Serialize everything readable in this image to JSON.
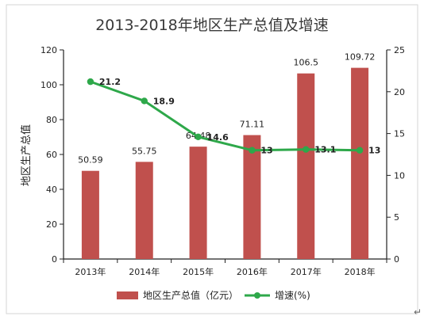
{
  "chart_data": {
    "type": "bar",
    "title": "2013-2018年地区生产总值及增速",
    "categories": [
      "2013年",
      "2014年",
      "2015年",
      "2016年",
      "2017年",
      "2018年"
    ],
    "ylabel": "地区生产总值",
    "ylim": [
      0,
      120
    ],
    "y_ticks": [
      "0",
      "20",
      "40",
      "60",
      "80",
      "100",
      "120"
    ],
    "y2lim": [
      0,
      25
    ],
    "y2_ticks": [
      "0",
      "5",
      "10",
      "15",
      "20",
      "25"
    ],
    "grid": false,
    "legend_position": "bottom",
    "series": [
      {
        "name": "地区生产总值（亿元）",
        "kind": "bar",
        "axis": "left",
        "color": "#c0504d",
        "values": [
          50.59,
          55.75,
          64.48,
          71.11,
          106.5,
          109.72
        ],
        "labels": [
          "50.59",
          "55.75",
          "64.48",
          "71.11",
          "106.5",
          "109.72"
        ]
      },
      {
        "name": "增速(%)",
        "kind": "line",
        "axis": "right",
        "color": "#2ea84a",
        "values": [
          21.2,
          18.9,
          14.6,
          13,
          13.1,
          13
        ],
        "labels": [
          "21.2",
          "18.9",
          "14.6",
          "13",
          "13.1",
          "13"
        ]
      }
    ],
    "trailing_mark": "↵"
  }
}
